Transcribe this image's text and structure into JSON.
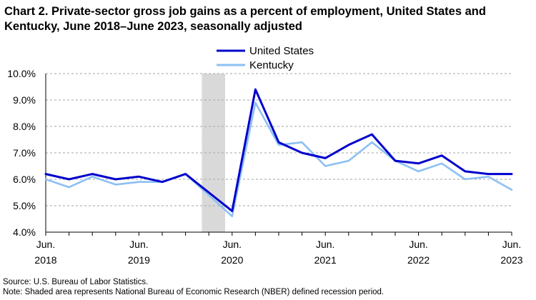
{
  "title": "Chart 2. Private-sector gross job gains as a percent of employment, United States and Kentucky, June 2018–June 2023, seasonally adjusted",
  "source": "Source: U.S. Bureau of Labor Statistics.",
  "note": "Note: Shaded area represents National Bureau of Economic Research (NBER) defined recession period.",
  "chart_data": {
    "type": "line",
    "title": "Chart 2. Private-sector gross job gains as a percent of employment, United States and Kentucky, June 2018–June 2023, seasonally adjusted",
    "xlabel": "",
    "ylabel": "",
    "x": [
      "Jun 2018",
      "Sep 2018",
      "Dec 2018",
      "Mar 2019",
      "Jun 2019",
      "Sep 2019",
      "Dec 2019",
      "Mar 2020",
      "Jun 2020",
      "Sep 2020",
      "Dec 2020",
      "Mar 2021",
      "Jun 2021",
      "Sep 2021",
      "Dec 2021",
      "Mar 2022",
      "Jun 2022",
      "Sep 2022",
      "Dec 2022",
      "Mar 2023",
      "Jun 2023"
    ],
    "series": [
      {
        "name": "United States",
        "color": "#0000cc",
        "values": [
          6.2,
          6.0,
          6.2,
          6.0,
          6.1,
          5.9,
          6.2,
          5.5,
          4.8,
          9.4,
          7.4,
          7.0,
          6.8,
          7.3,
          7.7,
          6.7,
          6.6,
          6.9,
          6.3,
          6.2,
          6.2
        ]
      },
      {
        "name": "Kentucky",
        "color": "#8cc0f4",
        "values": [
          6.0,
          5.7,
          6.1,
          5.8,
          5.9,
          5.9,
          6.2,
          5.4,
          4.6,
          8.9,
          7.3,
          7.4,
          6.5,
          6.7,
          7.4,
          6.7,
          6.3,
          6.6,
          6.0,
          6.1,
          5.6
        ]
      }
    ],
    "x_tick_labels": [
      {
        "line1": "Jun.",
        "line2": "2018",
        "index": 0
      },
      {
        "line1": "Jun.",
        "line2": "2019",
        "index": 4
      },
      {
        "line1": "Jun.",
        "line2": "2020",
        "index": 8
      },
      {
        "line1": "Jun.",
        "line2": "2021",
        "index": 12
      },
      {
        "line1": "Jun.",
        "line2": "2022",
        "index": 16
      },
      {
        "line1": "Jun.",
        "line2": "2023",
        "index": 20
      }
    ],
    "ylim": [
      4.0,
      10.0
    ],
    "y_ticks": [
      "4.0%",
      "5.0%",
      "6.0%",
      "7.0%",
      "8.0%",
      "9.0%",
      "10.0%"
    ],
    "y_tick_values": [
      4,
      5,
      6,
      7,
      8,
      9,
      10
    ],
    "recession": {
      "start_index": 6.7,
      "end_index": 7.7,
      "color": "#d9d9d9"
    },
    "grid": true,
    "legend_position": "top-center"
  }
}
